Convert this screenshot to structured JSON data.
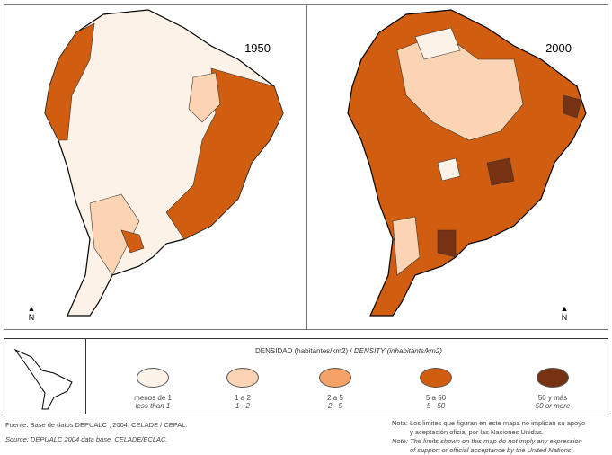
{
  "maps": [
    {
      "year": "1950"
    },
    {
      "year": "2000"
    }
  ],
  "north_label": "N",
  "legend": {
    "title_es": "DENSIDAD (habitantes/km2) / ",
    "title_en": "DENSITY (inhabitants/km2)",
    "classes": [
      {
        "es": "menos de 1",
        "en": "less than 1",
        "color": "#fdf2e8"
      },
      {
        "es": "1 a 2",
        "en": "1 - 2",
        "color": "#fbd5b3"
      },
      {
        "es": "2 a 5",
        "en": "2 - 5",
        "color": "#f4a268"
      },
      {
        "es": "5 a 50",
        "en": "5 - 50",
        "color": "#d15e10"
      },
      {
        "es": "50 y más",
        "en": "50 or more",
        "color": "#773214"
      }
    ]
  },
  "footer": {
    "source_es": "Fuente: Base de datos DEPUALC , 2004. CELADE / CEPAL.",
    "source_en": "Source: DEPUALC 2004 data base, CELADE/ECLAC.",
    "note_es_1": "Nota: Los limites que figuran en este mapa no implican su apoyo",
    "note_es_2": "y aceptación oficial por las Naciones Unidas.",
    "note_en_1": "Note: The limits shown on this map do not imply any expression",
    "note_en_2": "of support or official acceptance by the United Nations."
  }
}
